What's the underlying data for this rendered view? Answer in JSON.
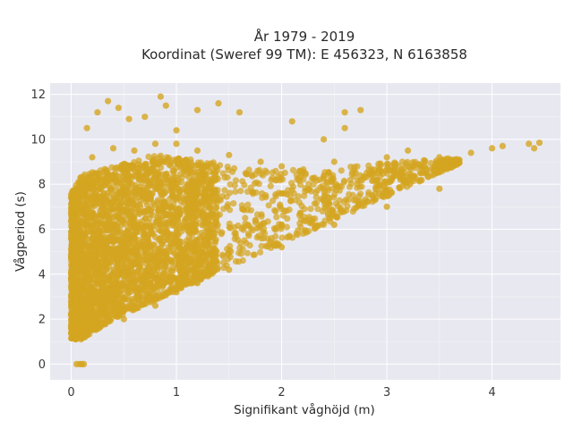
{
  "chart_data": {
    "type": "scatter",
    "title": [
      "År 1979 - 2019",
      "Koordinat (Sweref 99 TM): E 456323, N 6163858"
    ],
    "xlabel": "Signifikant våghöjd (m)",
    "ylabel": "Vågperiod (s)",
    "xlim": [
      -0.2,
      4.65
    ],
    "ylim": [
      -0.7,
      12.5
    ],
    "xticks": [
      0,
      1,
      2,
      3,
      4
    ],
    "yticks": [
      0,
      2,
      4,
      6,
      8,
      10,
      12
    ],
    "grid": true,
    "legend": "none",
    "colors": {
      "marker": "#d4a520",
      "plot_bg": "#e8e8f0",
      "grid": "#ffffff"
    },
    "series": [
      {
        "points": [
          [
            0.05,
            0
          ],
          [
            0.08,
            0
          ],
          [
            0.1,
            0
          ],
          [
            0.12,
            0
          ],
          [
            0.05,
            1.5
          ],
          [
            0.1,
            1.2
          ],
          [
            0.2,
            1.6
          ],
          [
            0.3,
            1.8
          ],
          [
            0.5,
            2.0
          ],
          [
            0.8,
            2.6
          ],
          [
            1.0,
            3.2
          ],
          [
            1.2,
            3.6
          ],
          [
            1.5,
            4.2
          ],
          [
            2.0,
            5.2
          ],
          [
            2.5,
            6.2
          ],
          [
            3.0,
            7.0
          ],
          [
            3.5,
            7.8
          ],
          [
            0.05,
            7.5
          ],
          [
            0.1,
            8.2
          ],
          [
            0.2,
            9.2
          ],
          [
            0.4,
            9.6
          ],
          [
            0.6,
            9.5
          ],
          [
            0.8,
            9.8
          ],
          [
            1.0,
            9.8
          ],
          [
            1.2,
            9.5
          ],
          [
            1.5,
            9.3
          ],
          [
            1.8,
            9.0
          ],
          [
            2.0,
            8.8
          ],
          [
            2.5,
            9.0
          ],
          [
            3.0,
            9.2
          ],
          [
            3.5,
            9.2
          ],
          [
            3.8,
            9.4
          ],
          [
            4.0,
            9.6
          ],
          [
            4.1,
            9.7
          ],
          [
            4.35,
            9.8
          ],
          [
            4.45,
            9.85
          ],
          [
            4.4,
            9.6
          ],
          [
            0.15,
            10.5
          ],
          [
            0.25,
            11.2
          ],
          [
            0.35,
            11.7
          ],
          [
            0.45,
            11.4
          ],
          [
            0.55,
            10.9
          ],
          [
            0.7,
            11.0
          ],
          [
            0.85,
            11.9
          ],
          [
            0.9,
            11.5
          ],
          [
            1.0,
            10.4
          ],
          [
            1.2,
            11.3
          ],
          [
            1.4,
            11.6
          ],
          [
            1.6,
            11.2
          ],
          [
            2.1,
            10.8
          ],
          [
            2.4,
            10.0
          ],
          [
            2.6,
            10.5
          ],
          [
            2.75,
            11.3
          ],
          [
            2.6,
            11.2
          ],
          [
            3.2,
            9.5
          ]
        ]
      }
    ]
  }
}
